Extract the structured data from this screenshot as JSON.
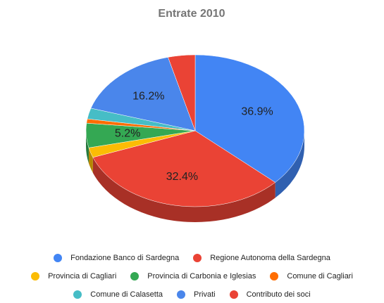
{
  "chart_data": {
    "type": "pie3d",
    "title": "Entrate 2010",
    "categories": [
      "Fondazione Banco di Sardegna",
      "Regione Autonoma della Sardegna",
      "Provincia di Cagliari",
      "Provincia di Carbonia e Iglesias",
      "Comune di Cagliari",
      "Comune di Calasetta",
      "Privati",
      "Contributo dei soci"
    ],
    "values": [
      36.9,
      32.4,
      2.1,
      5.2,
      0.9,
      2.3,
      16.2,
      4.0
    ],
    "value_labels": [
      "36.9%",
      "32.4%",
      null,
      "5.2%",
      null,
      null,
      "16.2%",
      null
    ],
    "colors": [
      "#4285f4",
      "#ea4335",
      "#fbbc04",
      "#34a853",
      "#ff6d01",
      "#46bdc6",
      "#4a86eb",
      "#ea4335"
    ],
    "legend": "bottom"
  }
}
